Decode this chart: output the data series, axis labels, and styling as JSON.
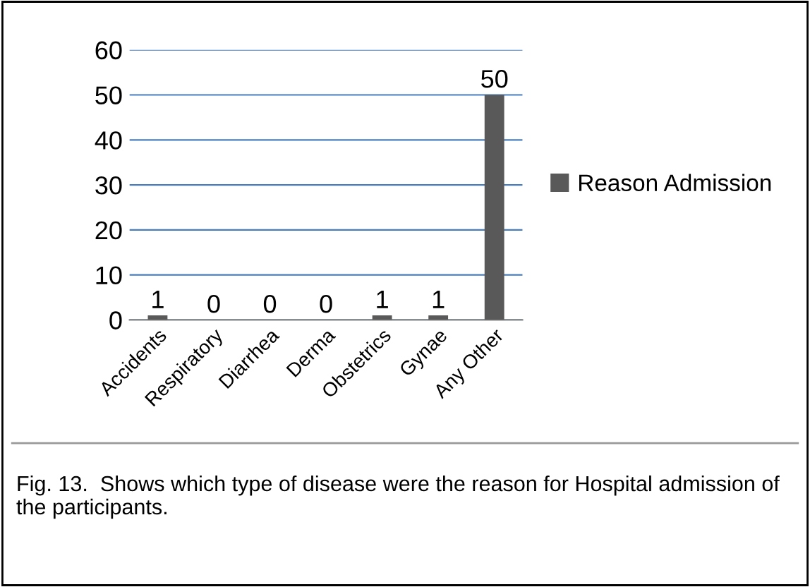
{
  "chart_data": {
    "type": "bar",
    "categories": [
      "Accidents",
      "Respiratory",
      "Diarrhea",
      "Derma",
      "Obstetrics",
      "Gynae",
      "Any Other"
    ],
    "series": [
      {
        "name": "Reason Admission",
        "color": "#595959",
        "values": [
          1,
          0,
          0,
          0,
          1,
          1,
          50
        ]
      }
    ],
    "ylim": [
      0,
      60
    ],
    "yticks": [
      0,
      10,
      20,
      30,
      40,
      50,
      60
    ],
    "grid": "y",
    "legend": "right",
    "data_labels": true,
    "annotations": [
      "Fig. 13.  Shows which type of disease were the reason for Hospital admission of the participants."
    ]
  }
}
